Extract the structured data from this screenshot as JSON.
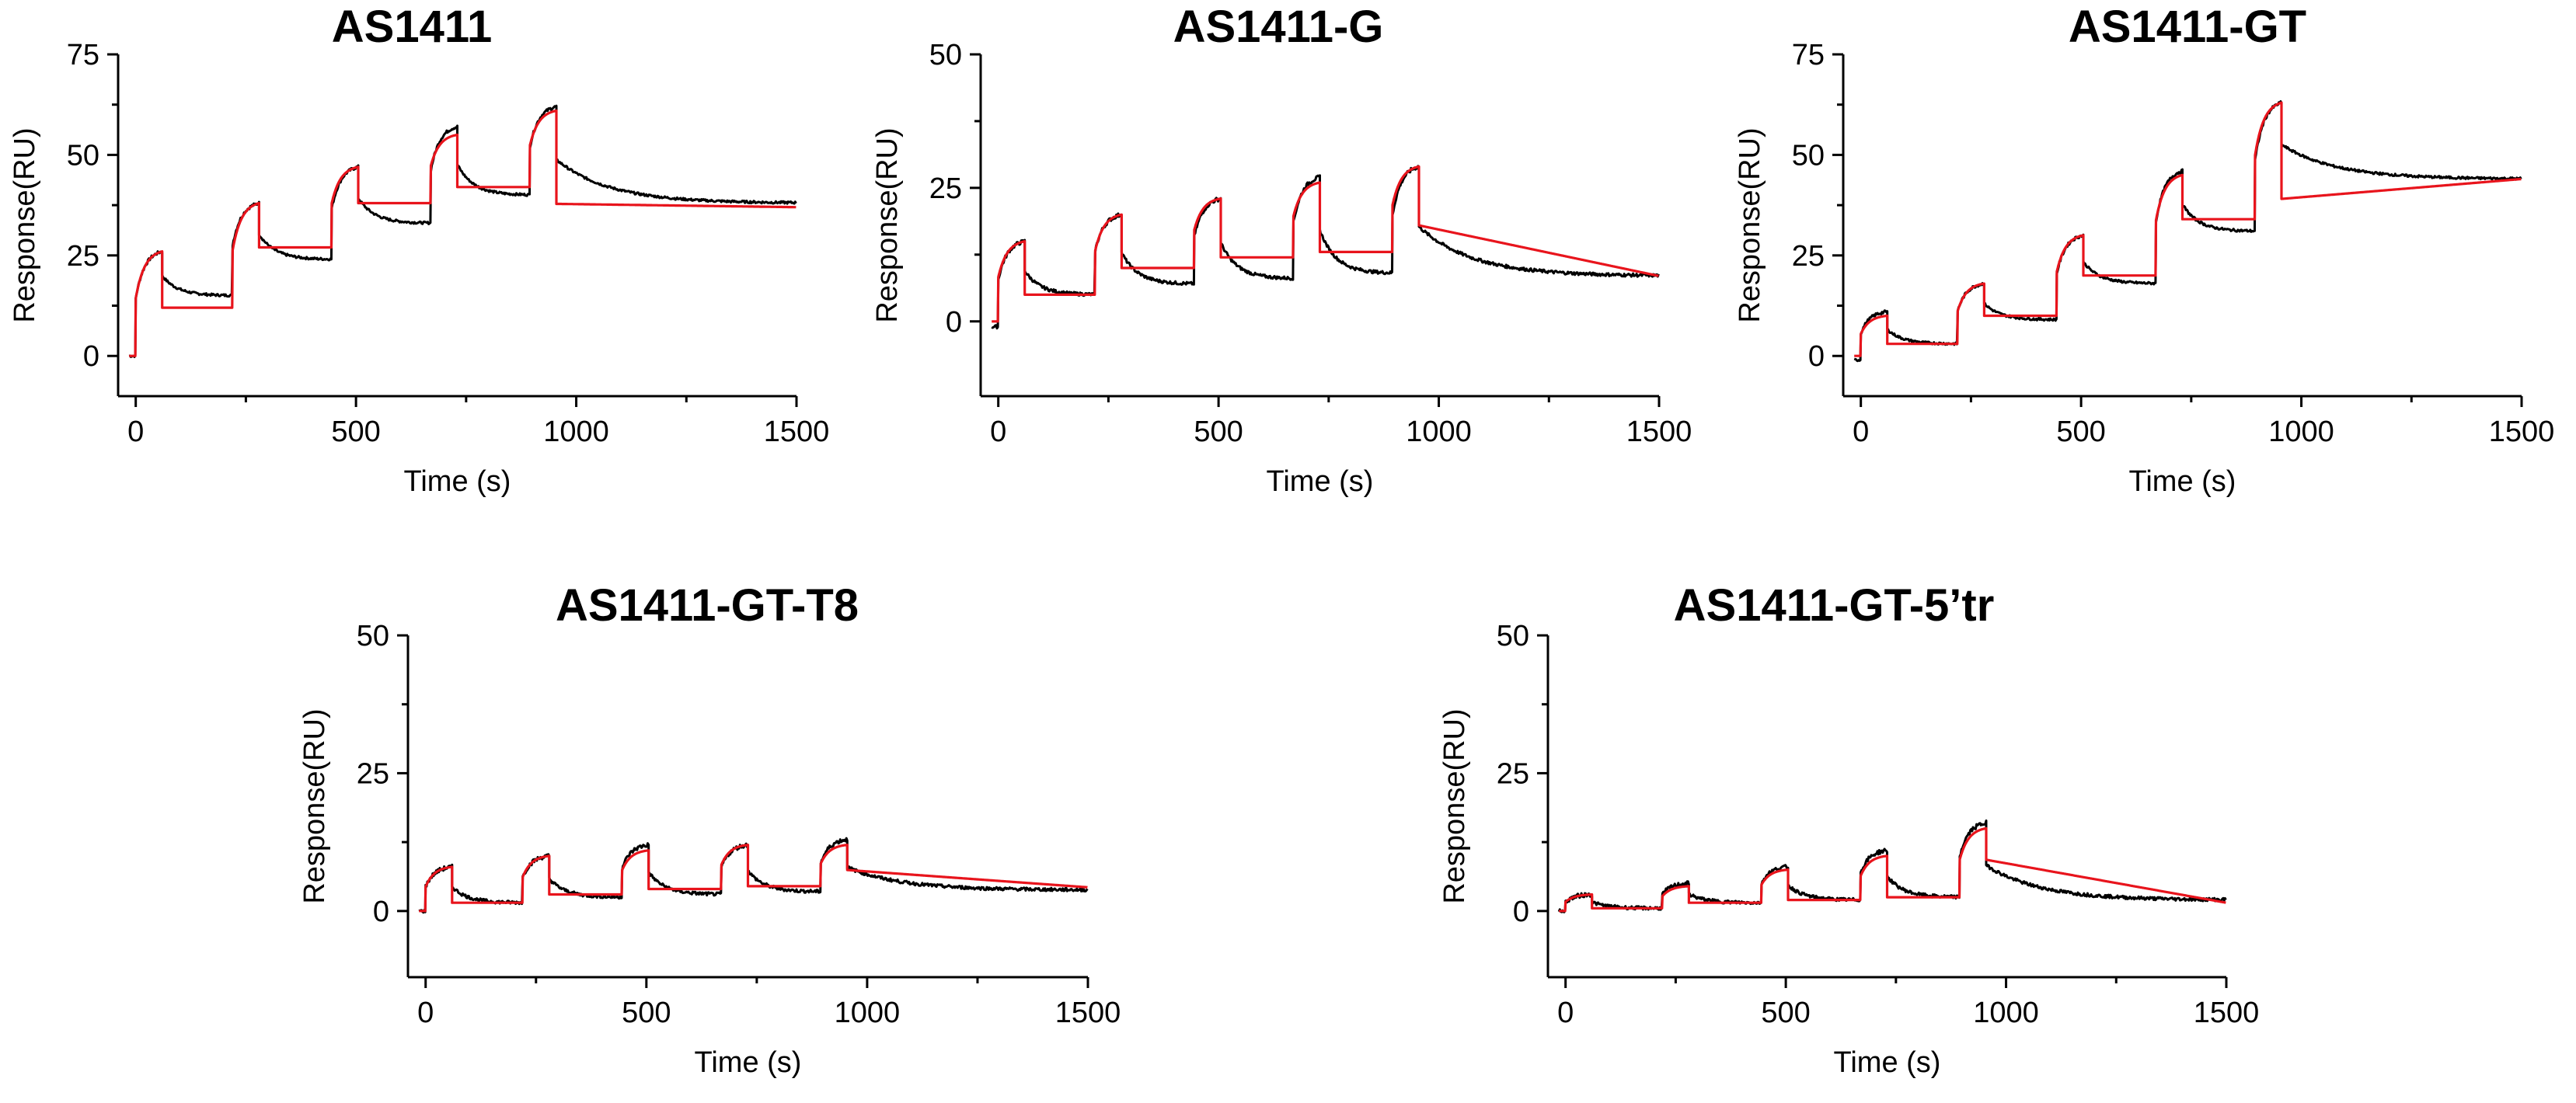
{
  "colors": {
    "measured": "#000000",
    "fit": "#e8141c",
    "axis": "#000000"
  },
  "chart_data": [
    {
      "type": "line",
      "title": "AS1411",
      "xlabel": "Time (s)",
      "ylabel": "Response(RU)",
      "xlim": [
        -40,
        1500
      ],
      "ylim": [
        -10,
        75
      ],
      "xticks": [
        0,
        500,
        1000,
        1500
      ],
      "yticks": [
        0,
        25,
        50,
        75
      ],
      "inject_starts": [
        0,
        220,
        445,
        670,
        895
      ],
      "inject_ends": [
        60,
        280,
        505,
        730,
        955
      ],
      "series": [
        {
          "name": "measured",
          "baseline": 0,
          "assoc_ends": [
            26,
            38,
            47,
            57,
            62
          ],
          "dissoc_ends": [
            15,
            24,
            33,
            40,
            38
          ]
        },
        {
          "name": "fit",
          "baseline": 0,
          "assoc_ends": [
            26,
            38,
            47,
            55,
            61
          ],
          "dissoc_ends": [
            12,
            27,
            38,
            42,
            37
          ]
        }
      ]
    },
    {
      "type": "line",
      "title": "AS1411-G",
      "xlabel": "Time (s)",
      "ylabel": "Response(RU)",
      "xlim": [
        -40,
        1500
      ],
      "ylim": [
        -14,
        50
      ],
      "xticks": [
        0,
        500,
        1000,
        1500
      ],
      "yticks": [
        0,
        25,
        50
      ],
      "inject_starts": [
        0,
        220,
        445,
        670,
        895
      ],
      "inject_ends": [
        60,
        280,
        505,
        730,
        955
      ],
      "series": [
        {
          "name": "measured",
          "baseline": -1,
          "assoc_ends": [
            15,
            20,
            23,
            27,
            29
          ],
          "dissoc_ends": [
            5,
            7,
            8,
            9,
            8.5
          ]
        },
        {
          "name": "fit",
          "baseline": 0,
          "assoc_ends": [
            15,
            20,
            23,
            26,
            29
          ],
          "dissoc_ends": [
            5,
            10,
            12,
            13,
            8.5
          ]
        }
      ]
    },
    {
      "type": "line",
      "title": "AS1411-GT",
      "xlabel": "Time (s)",
      "ylabel": "Response(RU)",
      "xlim": [
        -40,
        1500
      ],
      "ylim": [
        -10,
        75
      ],
      "xticks": [
        0,
        500,
        1000,
        1500
      ],
      "yticks": [
        0,
        25,
        50,
        75
      ],
      "inject_starts": [
        0,
        220,
        445,
        670,
        895
      ],
      "inject_ends": [
        60,
        280,
        505,
        730,
        955
      ],
      "series": [
        {
          "name": "measured",
          "baseline": -1,
          "assoc_ends": [
            11,
            18,
            30,
            46,
            63
          ],
          "dissoc_ends": [
            3,
            9,
            18,
            31,
            44
          ]
        },
        {
          "name": "fit",
          "baseline": 0,
          "assoc_ends": [
            10,
            18,
            30,
            45,
            63
          ],
          "dissoc_ends": [
            3,
            10,
            20,
            34,
            44
          ]
        }
      ]
    },
    {
      "type": "line",
      "title": "AS1411-GT-T8",
      "xlabel": "Time (s)",
      "ylabel": "Response(RU)",
      "xlim": [
        -40,
        1500
      ],
      "ylim": [
        -12,
        50
      ],
      "xticks": [
        0,
        500,
        1000,
        1500
      ],
      "yticks": [
        0,
        25,
        50
      ],
      "inject_starts": [
        0,
        220,
        445,
        670,
        895
      ],
      "inject_ends": [
        60,
        280,
        505,
        730,
        955
      ],
      "series": [
        {
          "name": "measured",
          "baseline": 0,
          "assoc_ends": [
            8,
            10,
            12,
            12,
            13
          ],
          "dissoc_ends": [
            1.5,
            2.5,
            3,
            3.5,
            3.8
          ]
        },
        {
          "name": "fit",
          "baseline": 0,
          "assoc_ends": [
            8,
            10,
            11,
            12,
            12
          ],
          "dissoc_ends": [
            1.5,
            3,
            4,
            4.5,
            4.3
          ]
        }
      ]
    },
    {
      "type": "line",
      "title": "AS1411-GT-5’tr",
      "xlabel": "Time (s)",
      "ylabel": "Response(RU)",
      "xlim": [
        -40,
        1500
      ],
      "ylim": [
        -12,
        50
      ],
      "xticks": [
        0,
        500,
        1000,
        1500
      ],
      "yticks": [
        0,
        25,
        50
      ],
      "inject_starts": [
        0,
        220,
        445,
        670,
        895
      ],
      "inject_ends": [
        60,
        280,
        505,
        730,
        955
      ],
      "series": [
        {
          "name": "measured",
          "baseline": 0,
          "assoc_ends": [
            3,
            5,
            8,
            11,
            16
          ],
          "dissoc_ends": [
            0.5,
            1.5,
            2,
            2.5,
            2
          ]
        },
        {
          "name": "fit",
          "baseline": 0,
          "assoc_ends": [
            3,
            4.5,
            7.5,
            10,
            15
          ],
          "dissoc_ends": [
            0.5,
            1.5,
            2,
            2.5,
            1.5
          ]
        }
      ]
    }
  ]
}
